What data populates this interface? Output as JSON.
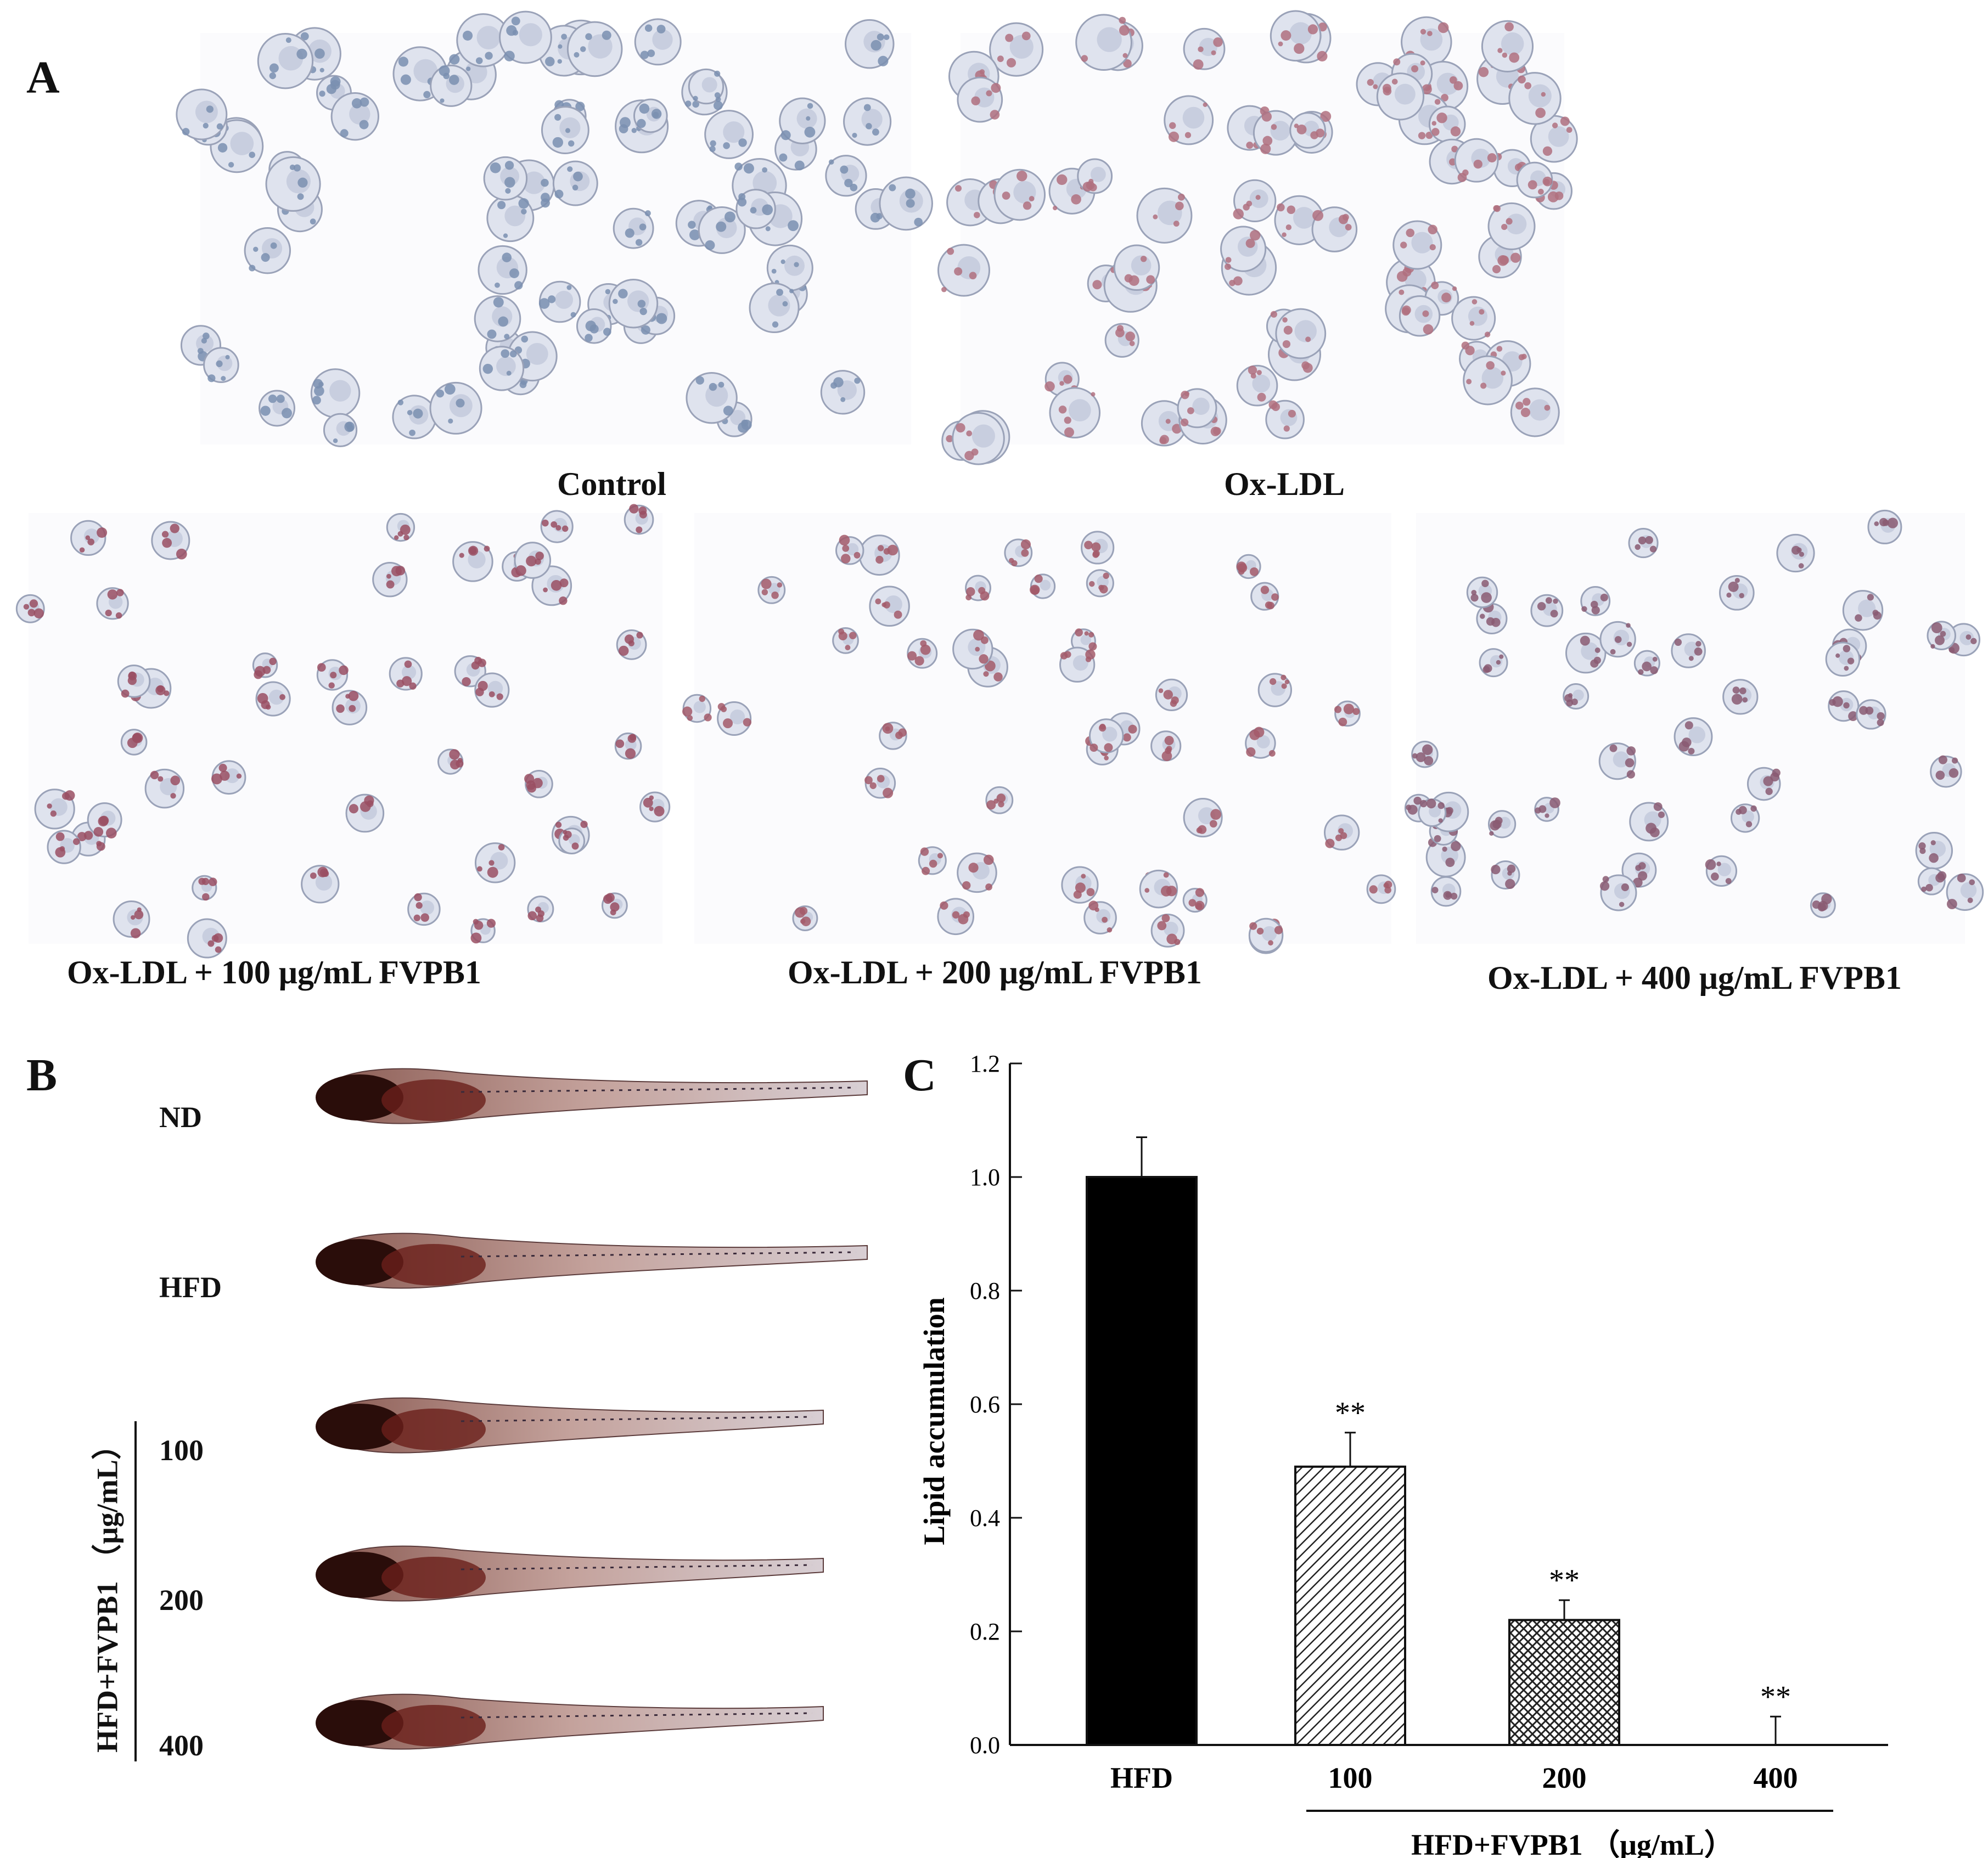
{
  "panelA": {
    "letter": "A",
    "images": [
      {
        "label": "Control",
        "stain": "#7a8fb0"
      },
      {
        "label": "Ox-LDL",
        "stain": "#b0707f"
      },
      {
        "label": "Ox-LDL + 100 μg/mL FVPB1",
        "stain": "#9a4f63"
      },
      {
        "label": "Ox-LDL + 200 μg/mL FVPB1",
        "stain": "#a35a6a"
      },
      {
        "label": "Ox-LDL + 400 μg/mL FVPB1",
        "stain": "#8a5a72"
      }
    ]
  },
  "panelB": {
    "letter": "B",
    "groups": [
      {
        "label": "ND"
      },
      {
        "label": "HFD"
      },
      {
        "label": "100"
      },
      {
        "label": "200"
      },
      {
        "label": "400"
      }
    ],
    "bracket_label": "HFD+FVPB1 （μg/mL）"
  },
  "panelC": {
    "letter": "C"
  },
  "chart_data": {
    "type": "bar",
    "categories": [
      "HFD",
      "100",
      "200",
      "400"
    ],
    "values": [
      1.0,
      0.49,
      0.22,
      0.0
    ],
    "errors": [
      0.07,
      0.06,
      0.035,
      0.05
    ],
    "significance": [
      "",
      "**",
      "**",
      "**"
    ],
    "fills": [
      "solid",
      "diagonal",
      "crosshatch",
      "none"
    ],
    "ylabel": "Lipid accumulation",
    "ylim": [
      0,
      1.2
    ],
    "yticks": [
      "0.0",
      "0.2",
      "0.4",
      "0.6",
      "0.8",
      "1.0",
      "1.2"
    ],
    "group_label": "HFD+FVPB1 （μg/mL）",
    "bar_color": "#000000"
  }
}
